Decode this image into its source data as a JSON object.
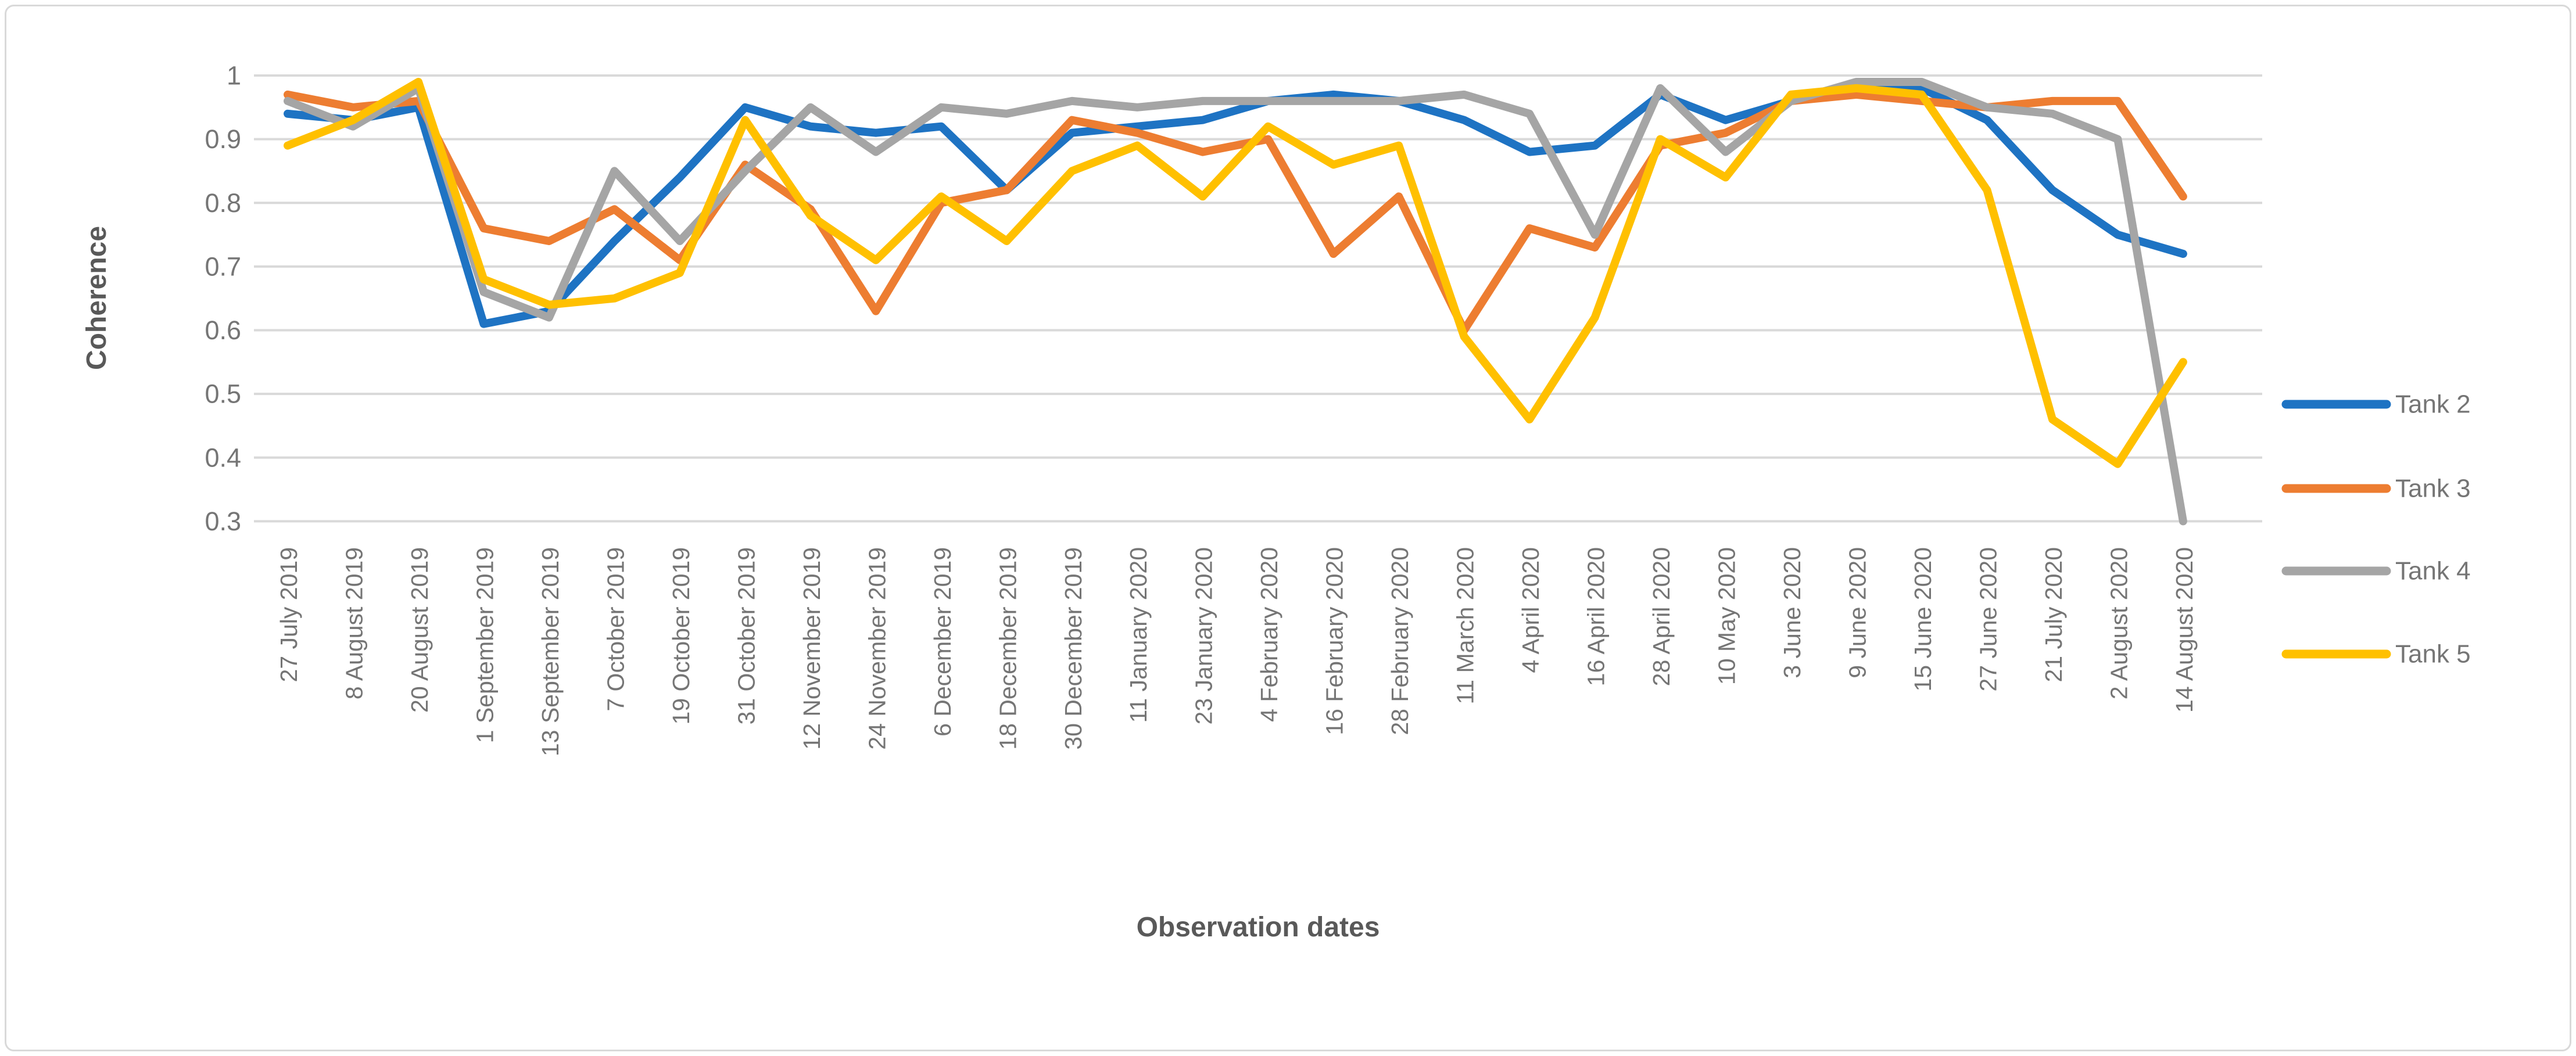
{
  "figure": {
    "background": "#FFFFFF",
    "border_color": "#D9D9D9",
    "grid_color": "#D9D9D9",
    "tick_label_color": "#757575",
    "axis_title_color": "#595959"
  },
  "y_axis": {
    "title": "Coherence",
    "tick_labels": [
      "1",
      "0.9",
      "0.8",
      "0.7",
      "0.6",
      "0.5",
      "0.4",
      "0.3"
    ],
    "tick_values": [
      1.0,
      0.9,
      0.8,
      0.7,
      0.6,
      0.5,
      0.4,
      0.3
    ]
  },
  "x_axis": {
    "title": "Observation dates"
  },
  "legend": {
    "position": "right",
    "items": [
      {
        "label": "Tank 2",
        "color": "#1E73C3"
      },
      {
        "label": "Tank 3",
        "color": "#ED7D31"
      },
      {
        "label": "Tank 4",
        "color": "#A5A5A5"
      },
      {
        "label": "Tank 5",
        "color": "#FFC000"
      }
    ]
  },
  "chart_data": {
    "type": "line",
    "title": "",
    "xlabel": "Observation dates",
    "ylabel": "Coherence",
    "ylim": [
      0.3,
      1.0
    ],
    "grid": true,
    "legend_position": "right",
    "categories": [
      "27 July 2019",
      "8 August 2019",
      "20 August 2019",
      "1 September 2019",
      "13 September 2019",
      "7 October 2019",
      "19 October 2019",
      "31 October 2019",
      "12 November 2019",
      "24 November 2019",
      "6 December 2019",
      "18 December 2019",
      "30 December 2019",
      "11 January 2020",
      "23 January 2020",
      "4 February 2020",
      "16 February 2020",
      "28 February 2020",
      "11 March 2020",
      "4 April 2020",
      "16 April 2020",
      "28 April 2020",
      "10 May 2020",
      "3 June 2020",
      "9 June 2020",
      "15 June 2020",
      "27 June 2020",
      "21 July 2020",
      "2 August 2020",
      "14 August 2020"
    ],
    "series": [
      {
        "name": "Tank 2",
        "color": "#1E73C3",
        "values": [
          0.94,
          0.93,
          0.95,
          0.61,
          0.63,
          0.74,
          0.84,
          0.95,
          0.92,
          0.91,
          0.92,
          0.82,
          0.91,
          0.92,
          0.93,
          0.96,
          0.97,
          0.96,
          0.93,
          0.88,
          0.89,
          0.97,
          0.93,
          0.96,
          0.98,
          0.98,
          0.93,
          0.82,
          0.75,
          0.72
        ]
      },
      {
        "name": "Tank 3",
        "color": "#ED7D31",
        "values": [
          0.97,
          0.95,
          0.96,
          0.76,
          0.74,
          0.79,
          0.71,
          0.86,
          0.79,
          0.63,
          0.8,
          0.82,
          0.93,
          0.91,
          0.88,
          0.9,
          0.72,
          0.81,
          0.6,
          0.76,
          0.73,
          0.89,
          0.91,
          0.96,
          0.97,
          0.96,
          0.95,
          0.96,
          0.96,
          0.81
        ]
      },
      {
        "name": "Tank 4",
        "color": "#A5A5A5",
        "values": [
          0.96,
          0.92,
          0.98,
          0.66,
          0.62,
          0.85,
          0.74,
          0.85,
          0.95,
          0.88,
          0.95,
          0.94,
          0.96,
          0.95,
          0.96,
          0.96,
          0.96,
          0.96,
          0.97,
          0.94,
          0.75,
          0.98,
          0.88,
          0.96,
          0.99,
          0.99,
          0.95,
          0.94,
          0.9,
          0.3
        ]
      },
      {
        "name": "Tank 5",
        "color": "#FFC000",
        "values": [
          0.89,
          0.93,
          0.99,
          0.68,
          0.64,
          0.65,
          0.69,
          0.93,
          0.78,
          0.71,
          0.81,
          0.74,
          0.85,
          0.89,
          0.81,
          0.92,
          0.86,
          0.89,
          0.59,
          0.46,
          0.62,
          0.9,
          0.84,
          0.97,
          0.98,
          0.97,
          0.82,
          0.46,
          0.39,
          0.55
        ]
      }
    ]
  }
}
